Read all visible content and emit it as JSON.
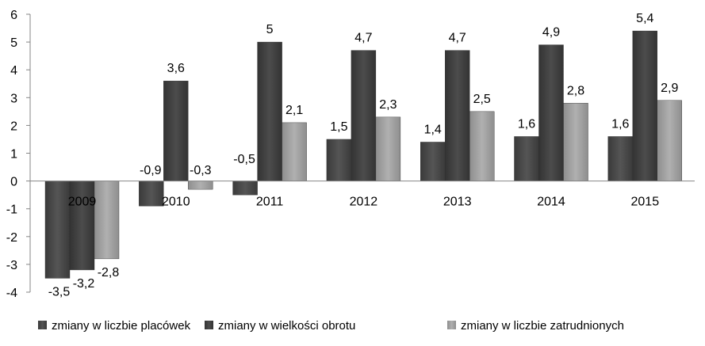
{
  "chart_data": {
    "type": "bar",
    "categories": [
      "2009",
      "2010",
      "2011",
      "2012",
      "2013",
      "2014",
      "2015"
    ],
    "series": [
      {
        "name": "zmiany w liczbie placówek",
        "values": [
          -3.5,
          -0.9,
          -0.5,
          1.5,
          1.4,
          1.6,
          1.6
        ],
        "labels": [
          "-3,5",
          "-0,9",
          "-0,5",
          "1,5",
          "1,4",
          "1,6",
          "1,6"
        ],
        "color": "#4a4a4a"
      },
      {
        "name": "zmiany w wielkości obrotu",
        "values": [
          -3.2,
          3.6,
          5,
          4.7,
          4.7,
          4.9,
          5.4
        ],
        "labels": [
          "-3,2",
          "3,6",
          "5",
          "4,7",
          "4,7",
          "4,9",
          "5,4"
        ],
        "color": "#3f3f3f"
      },
      {
        "name": "zmiany w liczbie zatrudnionych",
        "values": [
          -2.8,
          -0.3,
          2.1,
          2.3,
          2.5,
          2.8,
          2.9
        ],
        "labels": [
          "-2,8",
          "-0,3",
          "2,1",
          "2,3",
          "2,5",
          "2,8",
          "2,9"
        ],
        "color": "#9a9a9a"
      }
    ],
    "yticks": [
      6,
      5,
      4,
      3,
      2,
      1,
      0,
      -1,
      -2,
      -3,
      -4
    ],
    "ylim": [
      -4,
      6
    ],
    "legend_position": "bottom",
    "grid": false
  }
}
